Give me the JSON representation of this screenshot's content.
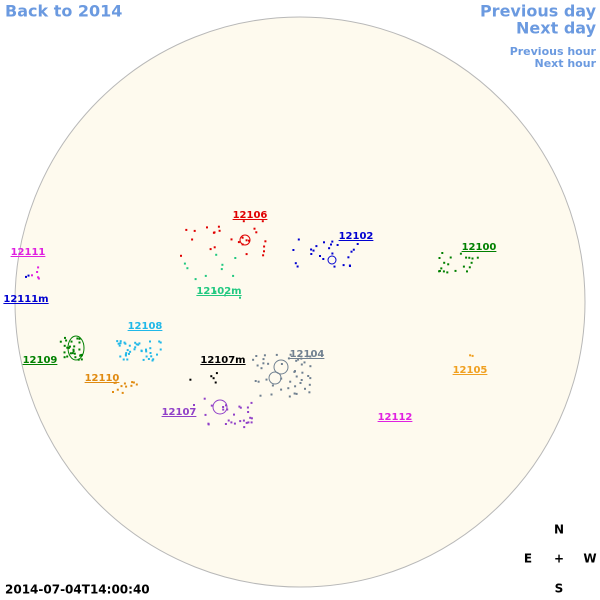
{
  "navigation": {
    "back": "Back to 2014",
    "previous_day": "Previous day",
    "next_day": "Next day",
    "previous_hour": "Previous hour",
    "next_hour": "Next hour"
  },
  "regions": [
    {
      "label": "12106",
      "color": "#e00000"
    },
    {
      "label": "12102",
      "color": "#0000d0"
    },
    {
      "label": "12100",
      "color": "#008000"
    },
    {
      "label": "12111",
      "color": "#e020e0"
    },
    {
      "label": "12111m",
      "color": "#0000d0"
    },
    {
      "label": "12102m",
      "color": "#20c880"
    },
    {
      "label": "12108",
      "color": "#20b8e8"
    },
    {
      "label": "12109",
      "color": "#008000"
    },
    {
      "label": "12104",
      "color": "#708090"
    },
    {
      "label": "12107m",
      "color": "#000000"
    },
    {
      "label": "12110",
      "color": "#e08a10"
    },
    {
      "label": "12105",
      "color": "#f0a020"
    },
    {
      "label": "12107",
      "color": "#9040c8"
    },
    {
      "label": "12112",
      "color": "#e020e0"
    }
  ],
  "compass": {
    "north": "N",
    "east": "E",
    "center": "+",
    "west": "W",
    "south": "S"
  },
  "timestamp": "2014-07-04T14:00:40"
}
